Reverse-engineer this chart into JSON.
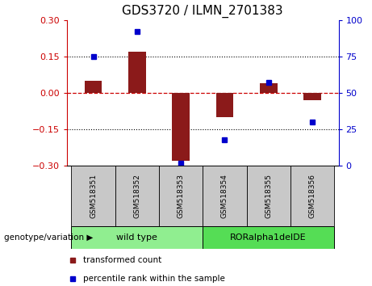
{
  "title": "GDS3720 / ILMN_2701383",
  "samples": [
    "GSM518351",
    "GSM518352",
    "GSM518353",
    "GSM518354",
    "GSM518355",
    "GSM518356"
  ],
  "red_values": [
    0.05,
    0.17,
    -0.28,
    -0.1,
    0.04,
    -0.03
  ],
  "blue_values_pct": [
    75,
    92,
    2,
    18,
    57,
    30
  ],
  "ylim_left": [
    -0.3,
    0.3
  ],
  "ylim_right": [
    0,
    100
  ],
  "yticks_left": [
    -0.3,
    -0.15,
    0,
    0.15,
    0.3
  ],
  "yticks_right": [
    0,
    25,
    50,
    75,
    100
  ],
  "groups": [
    {
      "label": "wild type",
      "span": [
        0,
        2
      ],
      "color": "#90EE90"
    },
    {
      "label": "RORalpha1delDE",
      "span": [
        3,
        5
      ],
      "color": "#55DD55"
    }
  ],
  "group_label": "genotype/variation",
  "legend_red": "transformed count",
  "legend_blue": "percentile rank within the sample",
  "bar_color": "#8B1A1A",
  "dot_color": "#0000CC",
  "hline_color": "#CC0000",
  "grid_color": "#000000",
  "bg_color": "#FFFFFF",
  "label_bg": "#C8C8C8",
  "title_fontsize": 11,
  "tick_fontsize": 8,
  "bar_width": 0.4
}
